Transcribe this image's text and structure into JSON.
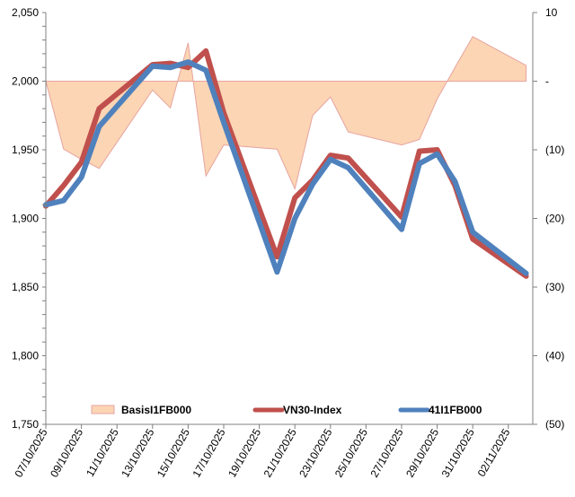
{
  "chart_data": {
    "type": "line",
    "title": "",
    "xlabel": "",
    "ylabel": "",
    "y2label": "",
    "x": [
      "07/10/2025",
      "08/10/2025",
      "09/10/2025",
      "10/10/2025",
      "13/10/2025",
      "14/10/2025",
      "15/10/2025",
      "16/10/2025",
      "17/10/2025",
      "20/10/2025",
      "21/10/2025",
      "22/10/2025",
      "23/10/2025",
      "24/10/2025",
      "27/10/2025",
      "28/10/2025",
      "29/10/2025",
      "30/10/2025",
      "31/10/2025",
      "03/11/2025"
    ],
    "x_tick_labels": [
      "07/10/2025",
      "09/10/2025",
      "11/10/2025",
      "13/10/2025",
      "15/10/2025",
      "17/10/2025",
      "19/10/2025",
      "21/10/2025",
      "23/10/2025",
      "25/10/2025",
      "27/10/2025",
      "29/10/2025",
      "31/10/2025",
      "02/11/2025"
    ],
    "ylim": [
      1750,
      2050
    ],
    "y_tick_labels": [
      "1,750",
      "1,800",
      "1,850",
      "1,900",
      "1,950",
      "2,000",
      "2,050"
    ],
    "y2lim": [
      -50,
      10
    ],
    "y2_tick_labels": [
      "(50)",
      "(40)",
      "(30)",
      "(20)",
      "(10)",
      "-",
      "10"
    ],
    "grid": false,
    "legend_position": "bottom-inside",
    "series": [
      {
        "name": "BasisI1FB000",
        "type": "area",
        "axis": "right",
        "color": "#FCD5B4",
        "stroke": "#E6A4A0",
        "values": [
          0,
          -9.9,
          -11.4,
          -12.7,
          -1.3,
          -3.9,
          5.6,
          -13.8,
          -9.3,
          -9.9,
          -15.7,
          -5.0,
          -2.3,
          -7.4,
          -9.3,
          -8.5,
          -2.6,
          2.0,
          6.5,
          2.3
        ]
      },
      {
        "name": "VN30-Index",
        "type": "line",
        "axis": "left",
        "color": "#C0504D",
        "values": [
          1909,
          1924,
          1941,
          1980,
          2012,
          2013,
          2010,
          2022,
          1977,
          1872,
          1915,
          1928,
          1946,
          1944,
          1901,
          1949,
          1950,
          1924,
          1885,
          1858
        ]
      },
      {
        "name": "41I1FB000",
        "type": "line",
        "axis": "left",
        "color": "#4F81BD",
        "values": [
          1910,
          1913,
          1930,
          1967,
          2011,
          2010,
          2014,
          2008,
          1970,
          1861,
          1900,
          1925,
          1943,
          1937,
          1892,
          1940,
          1947,
          1927,
          1890,
          1860
        ]
      }
    ]
  }
}
